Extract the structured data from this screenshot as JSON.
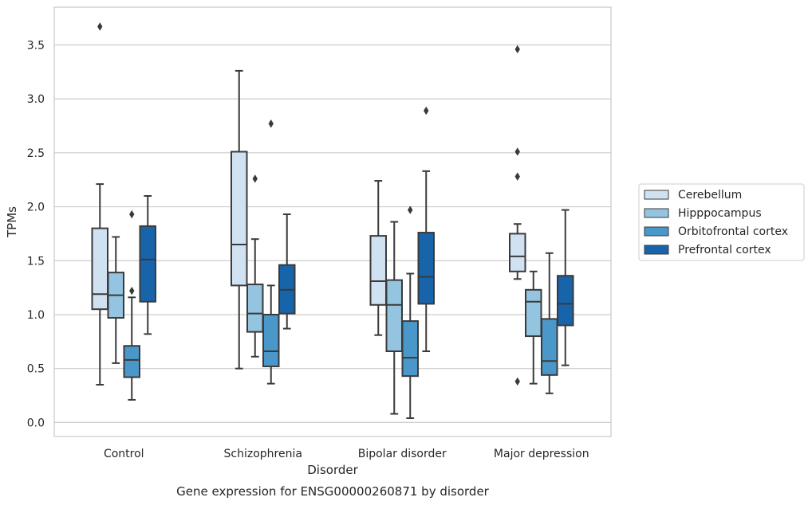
{
  "chart_data": {
    "type": "boxplot",
    "caption": "Gene expression for ENSG00000260871 by disorder",
    "xlabel": "Disorder",
    "ylabel": "TPMs",
    "ylim": [
      -0.13,
      3.85
    ],
    "yticks": [
      "0.0",
      "0.5",
      "1.0",
      "1.5",
      "2.0",
      "2.5",
      "3.0",
      "3.5"
    ],
    "grid": "horizontal",
    "legend_position": "right",
    "categories": [
      "Control",
      "Schizophrenia",
      "Bipolar disorder",
      "Major depression"
    ],
    "series": [
      {
        "name": "Cerebellum",
        "color": "#d0e1f2",
        "boxes": [
          {
            "whislo": 0.35,
            "q1": 1.05,
            "med": 1.19,
            "q3": 1.8,
            "whishi": 2.21,
            "fliers": [
              3.67
            ]
          },
          {
            "whislo": 0.5,
            "q1": 1.27,
            "med": 1.65,
            "q3": 2.51,
            "whishi": 3.26,
            "fliers": []
          },
          {
            "whislo": 0.81,
            "q1": 1.09,
            "med": 1.31,
            "q3": 1.73,
            "whishi": 2.24,
            "fliers": []
          },
          {
            "whislo": 1.33,
            "q1": 1.4,
            "med": 1.54,
            "q3": 1.75,
            "whishi": 1.84,
            "fliers": [
              3.46,
              2.51,
              2.28,
              0.38
            ]
          }
        ]
      },
      {
        "name": "Hipppocampus",
        "color": "#94c4df",
        "boxes": [
          {
            "whislo": 0.55,
            "q1": 0.97,
            "med": 1.18,
            "q3": 1.39,
            "whishi": 1.72,
            "fliers": []
          },
          {
            "whislo": 0.61,
            "q1": 0.84,
            "med": 1.01,
            "q3": 1.28,
            "whishi": 1.7,
            "fliers": [
              2.26
            ]
          },
          {
            "whislo": 0.08,
            "q1": 0.66,
            "med": 1.09,
            "q3": 1.32,
            "whishi": 1.86,
            "fliers": []
          },
          {
            "whislo": 0.36,
            "q1": 0.8,
            "med": 1.12,
            "q3": 1.23,
            "whishi": 1.4,
            "fliers": []
          }
        ]
      },
      {
        "name": "Orbitofrontal cortex",
        "color": "#4a98c9",
        "boxes": [
          {
            "whislo": 0.21,
            "q1": 0.42,
            "med": 0.58,
            "q3": 0.71,
            "whishi": 1.16,
            "fliers": [
              1.93,
              1.22
            ]
          },
          {
            "whislo": 0.36,
            "q1": 0.52,
            "med": 0.66,
            "q3": 1.0,
            "whishi": 1.27,
            "fliers": [
              2.77
            ]
          },
          {
            "whislo": 0.04,
            "q1": 0.43,
            "med": 0.6,
            "q3": 0.94,
            "whishi": 1.38,
            "fliers": [
              1.97
            ]
          },
          {
            "whislo": 0.27,
            "q1": 0.44,
            "med": 0.57,
            "q3": 0.96,
            "whishi": 1.57,
            "fliers": []
          }
        ]
      },
      {
        "name": "Prefrontal cortex",
        "color": "#1764ab",
        "boxes": [
          {
            "whislo": 0.82,
            "q1": 1.12,
            "med": 1.51,
            "q3": 1.82,
            "whishi": 2.1,
            "fliers": []
          },
          {
            "whislo": 0.87,
            "q1": 1.01,
            "med": 1.23,
            "q3": 1.46,
            "whishi": 1.93,
            "fliers": []
          },
          {
            "whislo": 0.66,
            "q1": 1.1,
            "med": 1.35,
            "q3": 1.76,
            "whishi": 2.33,
            "fliers": [
              2.89
            ]
          },
          {
            "whislo": 0.53,
            "q1": 0.9,
            "med": 1.1,
            "q3": 1.36,
            "whishi": 1.97,
            "fliers": []
          }
        ]
      }
    ]
  }
}
